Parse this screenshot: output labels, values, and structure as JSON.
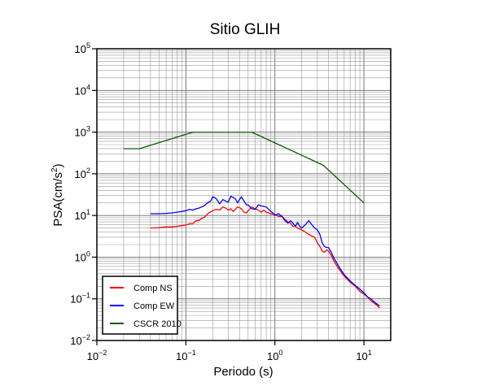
{
  "chart_data": {
    "type": "line",
    "title": "Sitio GLIH",
    "xlabel": "Periodo (s)",
    "ylabel": "PSA(cm/s2)",
    "ylabel_parts": {
      "base": "PSA(cm/s",
      "sup": "2",
      "close": ")"
    },
    "x_scale": "log",
    "y_scale": "log",
    "xlim": [
      0.01,
      20
    ],
    "ylim": [
      0.01,
      100000
    ],
    "grid": true,
    "legend_position": "bottom-left",
    "x_ticks": [
      {
        "value": 0.01,
        "base": "10",
        "exp": "−2"
      },
      {
        "value": 0.1,
        "base": "10",
        "exp": "−1"
      },
      {
        "value": 1,
        "base": "10",
        "exp": "0"
      },
      {
        "value": 10,
        "base": "10",
        "exp": "1"
      }
    ],
    "y_ticks": [
      {
        "value": 0.01,
        "base": "10",
        "exp": "−2"
      },
      {
        "value": 0.1,
        "base": "10",
        "exp": "−1"
      },
      {
        "value": 1,
        "base": "10",
        "exp": "0"
      },
      {
        "value": 10,
        "base": "10",
        "exp": "1"
      },
      {
        "value": 100,
        "base": "10",
        "exp": "2"
      },
      {
        "value": 1000,
        "base": "10",
        "exp": "3"
      },
      {
        "value": 10000,
        "base": "10",
        "exp": "4"
      },
      {
        "value": 100000,
        "base": "10",
        "exp": "5"
      }
    ],
    "series": [
      {
        "name": "Comp NS",
        "color": "#ff0000",
        "x": [
          0.04,
          0.05,
          0.06,
          0.07,
          0.08,
          0.09,
          0.1,
          0.11,
          0.12,
          0.13,
          0.14,
          0.15,
          0.16,
          0.17,
          0.18,
          0.2,
          0.22,
          0.24,
          0.26,
          0.28,
          0.3,
          0.32,
          0.34,
          0.36,
          0.38,
          0.4,
          0.42,
          0.45,
          0.48,
          0.5,
          0.55,
          0.6,
          0.65,
          0.7,
          0.75,
          0.8,
          0.85,
          0.9,
          1.0,
          1.1,
          1.2,
          1.3,
          1.4,
          1.5,
          1.6,
          1.7,
          1.8,
          2.0,
          2.2,
          2.4,
          2.6,
          2.8,
          3.0,
          3.2,
          3.4,
          3.6,
          3.8,
          4.0,
          4.3,
          4.6,
          5.0,
          5.5,
          6.0,
          7.0,
          8.0,
          9.0,
          10,
          11,
          12,
          13,
          14,
          15
        ],
        "values": [
          5,
          5.1,
          5.3,
          5.3,
          5.5,
          5.7,
          5.9,
          6.3,
          6.4,
          7.5,
          7.6,
          8.5,
          9,
          10,
          11.5,
          13,
          14,
          13.5,
          16,
          15,
          13.5,
          14.5,
          12.5,
          14,
          16,
          15.5,
          14.5,
          12,
          11.5,
          13,
          16,
          14.5,
          13.5,
          12,
          13.5,
          12,
          11.5,
          11,
          10.5,
          9.5,
          9.5,
          8,
          7,
          6.5,
          5.5,
          5.5,
          5,
          4.5,
          4,
          3.5,
          3.2,
          3,
          2.2,
          1.8,
          1.4,
          1.3,
          1.5,
          1.4,
          1.1,
          0.8,
          0.6,
          0.45,
          0.35,
          0.25,
          0.2,
          0.15,
          0.13,
          0.11,
          0.09,
          0.08,
          0.07,
          0.06
        ]
      },
      {
        "name": "Comp EW",
        "color": "#0000ff",
        "x": [
          0.04,
          0.05,
          0.06,
          0.07,
          0.08,
          0.09,
          0.1,
          0.11,
          0.12,
          0.13,
          0.14,
          0.15,
          0.16,
          0.17,
          0.18,
          0.19,
          0.2,
          0.21,
          0.22,
          0.24,
          0.26,
          0.28,
          0.3,
          0.32,
          0.34,
          0.36,
          0.38,
          0.4,
          0.42,
          0.45,
          0.48,
          0.5,
          0.55,
          0.6,
          0.65,
          0.7,
          0.75,
          0.8,
          0.85,
          0.9,
          0.95,
          1.0,
          1.1,
          1.2,
          1.3,
          1.4,
          1.5,
          1.6,
          1.7,
          1.8,
          1.9,
          2.0,
          2.2,
          2.4,
          2.6,
          2.8,
          3.0,
          3.2,
          3.4,
          3.6,
          3.8,
          4.0,
          4.3,
          4.6,
          5.0,
          5.5,
          6.0,
          7.0,
          8.0,
          9.0,
          10,
          11,
          12,
          13,
          14,
          15
        ],
        "values": [
          11,
          11,
          11.2,
          11.5,
          12,
          12.5,
          13,
          14,
          13.5,
          14.5,
          15,
          16,
          17,
          19,
          21,
          22,
          28,
          27,
          25,
          19,
          24,
          22,
          21,
          29,
          27,
          25,
          20,
          24,
          28,
          22,
          18,
          18,
          14.5,
          14,
          18,
          17,
          16.5,
          16,
          14,
          12.5,
          11.5,
          10,
          11,
          9.5,
          7.5,
          6.5,
          7.5,
          6.5,
          5.5,
          6.8,
          5.5,
          5,
          6,
          7.5,
          6,
          5,
          4.5,
          3.5,
          2.2,
          1.8,
          1.7,
          1.7,
          1.3,
          0.95,
          0.7,
          0.5,
          0.38,
          0.27,
          0.21,
          0.17,
          0.14,
          0.11,
          0.1,
          0.085,
          0.075,
          0.068
        ]
      },
      {
        "name": "CSCR 2010",
        "color": "#0a5c00",
        "x": [
          0.02,
          0.03,
          0.12,
          0.55,
          3.5,
          10
        ],
        "values": [
          400,
          400,
          1000,
          1000,
          160,
          20
        ]
      }
    ]
  }
}
